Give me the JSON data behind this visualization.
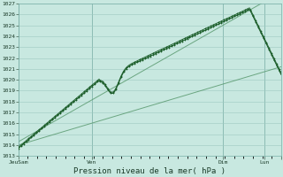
{
  "xlabel": "Pression niveau de la mer( hPa )",
  "ylim": [
    1013,
    1027
  ],
  "yticks": [
    1013,
    1014,
    1015,
    1016,
    1017,
    1018,
    1019,
    1020,
    1021,
    1022,
    1023,
    1024,
    1025,
    1026,
    1027
  ],
  "xtick_labels": [
    "JeuSam",
    "Ven",
    "Dim",
    "Lun",
    ""
  ],
  "xtick_positions": [
    0.0,
    0.28,
    0.78,
    0.935,
    1.0
  ],
  "background_color": "#c8e8e0",
  "plot_bg_color": "#c8e8e0",
  "grid_color_major": "#9dc8c0",
  "grid_color_minor": "#b8dcd4",
  "line_color_main": "#1a5c28",
  "line_color_trend": "#5a9a70",
  "n_points": 300,
  "figsize": [
    3.2,
    2.0
  ],
  "dpi": 100
}
